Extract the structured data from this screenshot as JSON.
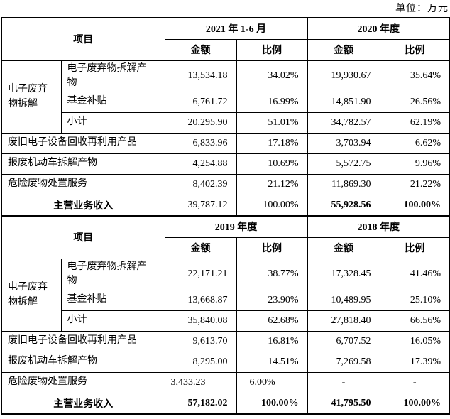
{
  "unit_label": "单位：万元",
  "tables": [
    {
      "header": {
        "item": "项目",
        "period_a": "2021 年 1-6 月",
        "period_b": "2020 年度",
        "amount": "金额",
        "ratio": "比例"
      },
      "group_label": "电子废弃物拆解",
      "group_rows": [
        {
          "label": "电子废弃物拆解产物",
          "amount_a": "13,534.18",
          "ratio_a": "34.02%",
          "amount_b": "19,930.67",
          "ratio_b": "35.64%"
        },
        {
          "label": "基金补贴",
          "amount_a": "6,761.72",
          "ratio_a": "16.99%",
          "amount_b": "14,851.90",
          "ratio_b": "26.56%"
        },
        {
          "label": "小计",
          "amount_a": "20,295.90",
          "ratio_a": "51.01%",
          "amount_b": "34,782.57",
          "ratio_b": "62.19%"
        }
      ],
      "rows": [
        {
          "label": "废旧电子设备回收再利用产品",
          "amount_a": "6,833.96",
          "ratio_a": "17.18%",
          "amount_b": "3,703.94",
          "ratio_b": "6.62%"
        },
        {
          "label": "报废机动车拆解产物",
          "amount_a": "4,254.88",
          "ratio_a": "10.69%",
          "amount_b": "5,572.75",
          "ratio_b": "9.96%"
        },
        {
          "label": "危险废物处置服务",
          "amount_a": "8,402.39",
          "ratio_a": "21.12%",
          "amount_b": "11,869.30",
          "ratio_b": "21.22%"
        }
      ],
      "total": {
        "label": "主营业务收入",
        "amount_a": "39,787.12",
        "ratio_a": "100.00%",
        "amount_b": "55,928.56",
        "ratio_b": "100.00%"
      }
    },
    {
      "header": {
        "item": "项目",
        "period_a": "2019 年度",
        "period_b": "2018 年度",
        "amount": "金额",
        "ratio": "比例"
      },
      "group_label": "电子废弃物拆解",
      "group_rows": [
        {
          "label": "电子废弃物拆解产物",
          "amount_a": "22,171.21",
          "ratio_a": "38.77%",
          "amount_b": "17,328.45",
          "ratio_b": "41.46%"
        },
        {
          "label": "基金补贴",
          "amount_a": "13,668.87",
          "ratio_a": "23.90%",
          "amount_b": "10,489.95",
          "ratio_b": "25.10%"
        },
        {
          "label": "小计",
          "amount_a": "35,840.08",
          "ratio_a": "62.68%",
          "amount_b": "27,818.40",
          "ratio_b": "66.56%"
        }
      ],
      "rows": [
        {
          "label": "废旧电子设备回收再利用产品",
          "amount_a": "9,613.70",
          "ratio_a": "16.81%",
          "amount_b": "6,707.52",
          "ratio_b": "16.05%"
        },
        {
          "label": "报废机动车拆解产物",
          "amount_a": "8,295.00",
          "ratio_a": "14.51%",
          "amount_b": "7,269.58",
          "ratio_b": "17.39%"
        },
        {
          "label": "危险废物处置服务",
          "amount_a": "3,433.23",
          "ratio_a": "6.00%",
          "amount_b": "-",
          "ratio_b": "-"
        }
      ],
      "total": {
        "label": "主营业务收入",
        "amount_a": "57,182.02",
        "ratio_a": "100.00%",
        "amount_b": "41,795.50",
        "ratio_b": "100.00%"
      }
    }
  ]
}
